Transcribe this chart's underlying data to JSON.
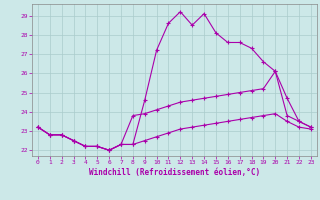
{
  "xlabel": "Windchill (Refroidissement éolien,°C)",
  "bg_color": "#cce8e8",
  "line_color": "#aa00aa",
  "grid_color": "#aacccc",
  "xlim": [
    -0.5,
    23.5
  ],
  "ylim": [
    21.7,
    29.6
  ],
  "yticks": [
    22,
    23,
    24,
    25,
    26,
    27,
    28,
    29
  ],
  "xticks": [
    0,
    1,
    2,
    3,
    4,
    5,
    6,
    7,
    8,
    9,
    10,
    11,
    12,
    13,
    14,
    15,
    16,
    17,
    18,
    19,
    20,
    21,
    22,
    23
  ],
  "series": [
    {
      "x": [
        0,
        1,
        2,
        3,
        4,
        5,
        6,
        7,
        8,
        9,
        10,
        11,
        12,
        13,
        14,
        15,
        16,
        17,
        18,
        19,
        20,
        21,
        22,
        23
      ],
      "y": [
        23.2,
        22.8,
        22.8,
        22.5,
        22.2,
        22.2,
        22.0,
        22.3,
        22.3,
        24.6,
        27.2,
        28.6,
        29.2,
        28.5,
        29.1,
        28.1,
        27.6,
        27.6,
        27.3,
        26.6,
        26.1,
        23.8,
        23.5,
        23.2
      ]
    },
    {
      "x": [
        0,
        1,
        2,
        3,
        4,
        5,
        6,
        7,
        8,
        9,
        10,
        11,
        12,
        13,
        14,
        15,
        16,
        17,
        18,
        19,
        20,
        21,
        22,
        23
      ],
      "y": [
        23.2,
        22.8,
        22.8,
        22.5,
        22.2,
        22.2,
        22.0,
        22.3,
        23.8,
        23.9,
        24.1,
        24.3,
        24.5,
        24.6,
        24.7,
        24.8,
        24.9,
        25.0,
        25.1,
        25.2,
        26.1,
        24.7,
        23.5,
        23.2
      ]
    },
    {
      "x": [
        0,
        1,
        2,
        3,
        4,
        5,
        6,
        7,
        8,
        9,
        10,
        11,
        12,
        13,
        14,
        15,
        16,
        17,
        18,
        19,
        20,
        21,
        22,
        23
      ],
      "y": [
        23.2,
        22.8,
        22.8,
        22.5,
        22.2,
        22.2,
        22.0,
        22.3,
        22.3,
        22.5,
        22.7,
        22.9,
        23.1,
        23.2,
        23.3,
        23.4,
        23.5,
        23.6,
        23.7,
        23.8,
        23.9,
        23.5,
        23.2,
        23.1
      ]
    }
  ]
}
